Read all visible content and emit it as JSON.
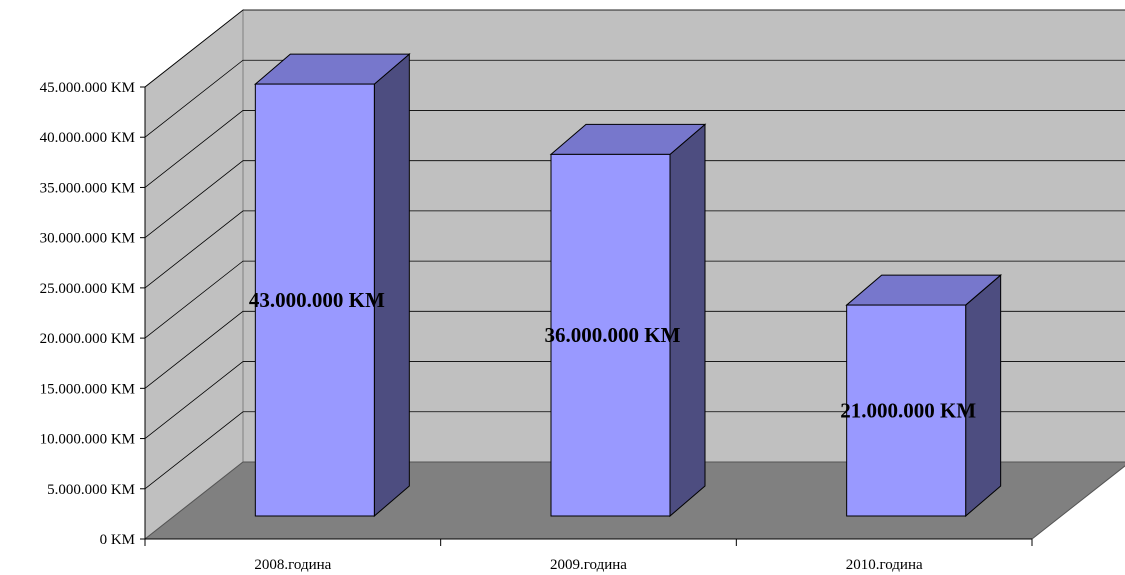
{
  "chart_data": {
    "type": "bar",
    "categories": [
      "2008.година",
      "2009.година",
      "2010.година"
    ],
    "values": [
      43000000,
      36000000,
      21000000
    ],
    "data_labels": [
      "43.000.000 KM",
      "36.000.000 KM",
      "21.000.000 KM"
    ],
    "y_ticks": [
      0,
      5000000,
      10000000,
      15000000,
      20000000,
      25000000,
      30000000,
      35000000,
      40000000,
      45000000
    ],
    "y_tick_labels": [
      "0 KM",
      "5.000.000 KM",
      "10.000.000 KM",
      "15.000.000 KM",
      "20.000.000 KM",
      "25.000.000 KM",
      "30.000.000 KM",
      "35.000.000 KM",
      "40.000.000 KM",
      "45.000.000 KM"
    ],
    "ylim": [
      0,
      45000000
    ],
    "title": "",
    "xlabel": "",
    "ylabel": "",
    "grid": true,
    "legend": "none",
    "three_d": true,
    "colors": {
      "bar_front": "#9999ff",
      "bar_top": "#7777cc",
      "bar_side": "#4d4d80",
      "back_wall": "#c0c0c0",
      "side_wall": "#c0c0c0",
      "floor": "#808080",
      "gridline": "#000000"
    }
  }
}
